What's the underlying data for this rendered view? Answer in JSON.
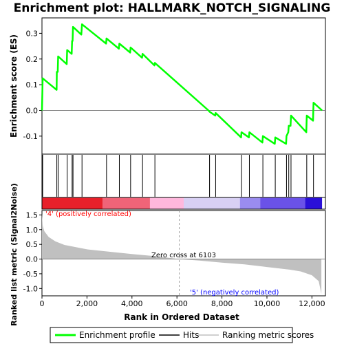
{
  "chart_data": {
    "type": "line",
    "title": "Enrichment plot: HALLMARK_NOTCH_SIGNALING",
    "colors": {
      "profile": "#00ff00",
      "hits": "#000000",
      "metric_fill": "#c0c0c0",
      "zero_line": "#808080",
      "positive_label": "#ff0000",
      "negative_label": "#0000ff"
    },
    "top_panel": {
      "ylabel": "Enrichment score (ES)",
      "ylim": [
        -0.17,
        0.36
      ],
      "yticks": [
        "-0.1",
        "0.0",
        "0.1",
        "0.2",
        "0.3"
      ],
      "ytick_values": [
        -0.1,
        0.0,
        0.1,
        0.2,
        0.3
      ],
      "xlim": [
        0,
        12600
      ],
      "grid": false,
      "series": [
        {
          "name": "Enrichment profile",
          "points": [
            [
              0,
              0.0
            ],
            [
              30,
              0.125
            ],
            [
              650,
              0.08
            ],
            [
              660,
              0.15
            ],
            [
              700,
              0.15
            ],
            [
              720,
              0.21
            ],
            [
              1100,
              0.18
            ],
            [
              1120,
              0.235
            ],
            [
              1320,
              0.22
            ],
            [
              1340,
              0.27
            ],
            [
              1360,
              0.27
            ],
            [
              1380,
              0.325
            ],
            [
              1750,
              0.295
            ],
            [
              1780,
              0.335
            ],
            [
              2850,
              0.26
            ],
            [
              2870,
              0.28
            ],
            [
              3420,
              0.24
            ],
            [
              3440,
              0.26
            ],
            [
              3920,
              0.225
            ],
            [
              3940,
              0.245
            ],
            [
              4450,
              0.205
            ],
            [
              4470,
              0.22
            ],
            [
              5000,
              0.175
            ],
            [
              5020,
              0.185
            ],
            [
              7400,
              0.0
            ],
            [
              7450,
              -0.005
            ],
            [
              7700,
              -0.02
            ],
            [
              7720,
              -0.01
            ],
            [
              8850,
              -0.105
            ],
            [
              8870,
              -0.085
            ],
            [
              9200,
              -0.105
            ],
            [
              9220,
              -0.085
            ],
            [
              9800,
              -0.125
            ],
            [
              9820,
              -0.1
            ],
            [
              10350,
              -0.13
            ],
            [
              10370,
              -0.105
            ],
            [
              10850,
              -0.13
            ],
            [
              10870,
              -0.1
            ],
            [
              10950,
              -0.085
            ],
            [
              10970,
              -0.06
            ],
            [
              11050,
              -0.06
            ],
            [
              11070,
              -0.02
            ],
            [
              11750,
              -0.085
            ],
            [
              11770,
              -0.02
            ],
            [
              12050,
              -0.04
            ],
            [
              12070,
              0.03
            ],
            [
              12450,
              0.0
            ]
          ]
        }
      ]
    },
    "hits": [
      0,
      30,
      660,
      720,
      1120,
      1340,
      1380,
      1780,
      2870,
      3440,
      3940,
      4470,
      5020,
      7450,
      7720,
      8870,
      9220,
      9820,
      10370,
      10870,
      10970,
      11070,
      11770,
      12070
    ],
    "bottom_panel": {
      "ylabel": "Ranked list metric (Signal2Noise)",
      "xlabel": "Rank in Ordered Dataset",
      "ylim": [
        -1.25,
        1.65
      ],
      "yticks": [
        "-1.0",
        "-0.5",
        "0.0",
        "0.5",
        "1.0",
        "1.5"
      ],
      "ytick_values": [
        -1.0,
        -0.5,
        0.0,
        0.5,
        1.0,
        1.5
      ],
      "xticks": [
        "0",
        "2,000",
        "4,000",
        "6,000",
        "8,000",
        "10,000",
        "12,000"
      ],
      "xtick_values": [
        0,
        2000,
        4000,
        6000,
        8000,
        10000,
        12000
      ],
      "xlim": [
        0,
        12600
      ],
      "metric_curve": [
        [
          0,
          1.55
        ],
        [
          30,
          1.15
        ],
        [
          100,
          0.95
        ],
        [
          300,
          0.75
        ],
        [
          600,
          0.6
        ],
        [
          1000,
          0.48
        ],
        [
          2000,
          0.33
        ],
        [
          3000,
          0.25
        ],
        [
          4000,
          0.17
        ],
        [
          5000,
          0.1
        ],
        [
          6103,
          0.0
        ],
        [
          7000,
          -0.05
        ],
        [
          8000,
          -0.12
        ],
        [
          9000,
          -0.18
        ],
        [
          10000,
          -0.27
        ],
        [
          11000,
          -0.36
        ],
        [
          11500,
          -0.42
        ],
        [
          12000,
          -0.55
        ],
        [
          12300,
          -0.75
        ],
        [
          12420,
          -1.18
        ]
      ],
      "zero_cross_label": "Zero cross at 6103",
      "zero_cross_rank": 6103,
      "positive_label": "'4' (positively correlated)",
      "negative_label": "'5' (negatively correlated)"
    },
    "legend": {
      "placement": "bottom",
      "entries": [
        {
          "name": "Enrichment profile",
          "color": "#00ff00"
        },
        {
          "name": "Hits",
          "color": "#000000"
        },
        {
          "name": "Ranking metric scores",
          "color": "#c0c0c0"
        }
      ]
    }
  }
}
